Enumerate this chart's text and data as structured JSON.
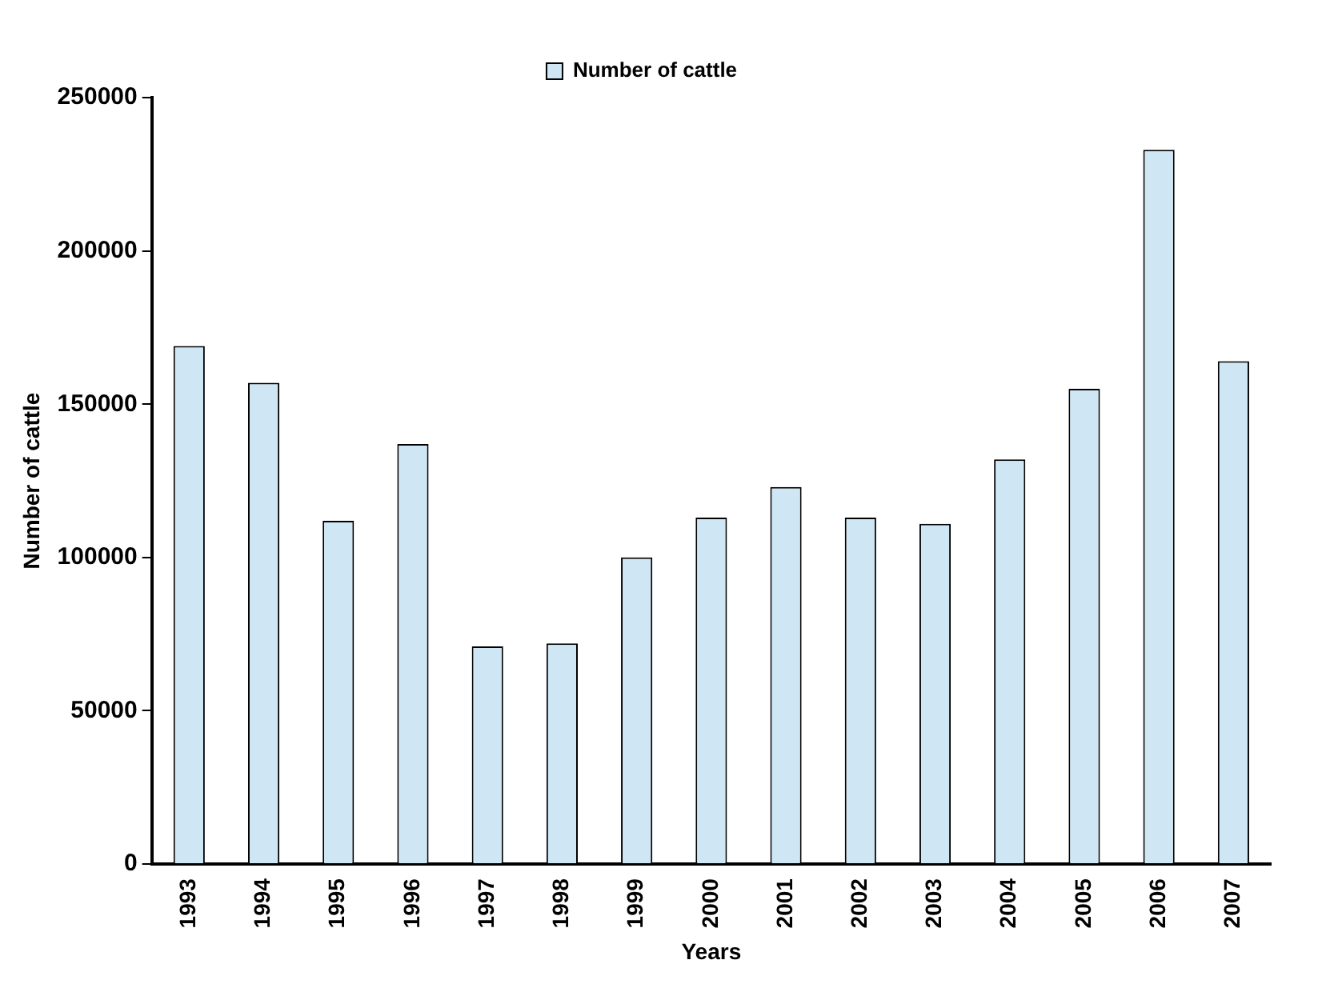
{
  "chart_data": {
    "type": "bar",
    "xlabel": "Years",
    "ylabel": "Number of cattle",
    "categories": [
      "1993",
      "1994",
      "1995",
      "1996",
      "1997",
      "1998",
      "1999",
      "2000",
      "2001",
      "2002",
      "2003",
      "2004",
      "2005",
      "2006",
      "2007"
    ],
    "series": [
      {
        "name": "Number of cattle",
        "color": "#cfe6f5",
        "values": [
          169000,
          157000,
          112000,
          137000,
          71000,
          72000,
          100000,
          113000,
          123000,
          113000,
          111000,
          132000,
          155000,
          233000,
          164000
        ]
      }
    ],
    "ylim": [
      0,
      250000
    ],
    "yticks": [
      0,
      50000,
      100000,
      150000,
      200000,
      250000
    ],
    "grid": false,
    "legend": "top"
  }
}
